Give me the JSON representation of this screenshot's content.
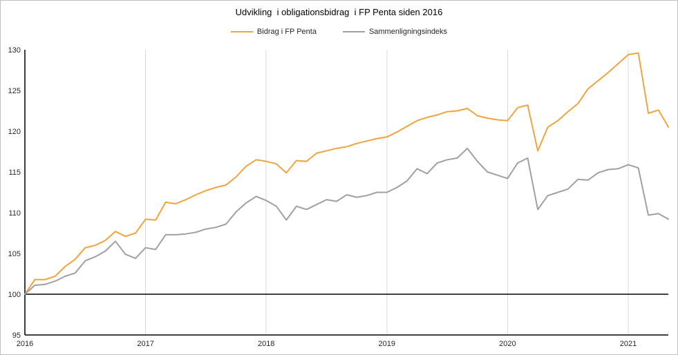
{
  "title": "Udvikling  i obligationsbidrag  i FP Penta siden 2016",
  "legend": [
    {
      "label": "Bidrag i FP Penta",
      "color": "#F1A33C"
    },
    {
      "label": "Sammenligningsindeks",
      "color": "#A0A0A0"
    }
  ],
  "colors": {
    "series_orange": "#F1A33C",
    "series_gray": "#A0A0A0",
    "gridline": "#D9D9D9",
    "axis": "#262626",
    "baseline": "#000000",
    "background": "#FFFFFF"
  },
  "chart_data": {
    "type": "line",
    "x_unit": "month",
    "x_start_label": "2016",
    "x_tick_labels": [
      "2016",
      "2017",
      "2018",
      "2019",
      "2020",
      "2021"
    ],
    "months_per_tick": 12,
    "y_ticks": [
      95,
      100,
      105,
      110,
      115,
      120,
      125,
      130
    ],
    "ylim": [
      95,
      130
    ],
    "baseline_value": 100,
    "grid": "vertical-only",
    "legend_position": "top-center",
    "series": [
      {
        "name": "Bidrag i FP Penta",
        "color": "#F1A33C",
        "values": [
          100.0,
          101.8,
          101.8,
          102.2,
          103.4,
          104.3,
          105.7,
          106.0,
          106.6,
          107.7,
          107.1,
          107.5,
          109.2,
          109.1,
          111.3,
          111.1,
          111.6,
          112.2,
          112.7,
          113.1,
          113.4,
          114.4,
          115.7,
          116.5,
          116.3,
          116.0,
          114.9,
          116.4,
          116.3,
          117.3,
          117.6,
          117.9,
          118.1,
          118.5,
          118.8,
          119.1,
          119.3,
          119.9,
          120.6,
          121.3,
          121.7,
          122.0,
          122.4,
          122.5,
          122.8,
          121.9,
          121.6,
          121.4,
          121.3,
          122.9,
          123.2,
          117.6,
          120.5,
          121.3,
          122.4,
          123.4,
          125.2,
          126.2,
          127.2,
          128.3,
          129.4,
          129.6,
          122.2,
          122.6,
          120.5
        ]
      },
      {
        "name": "Sammenligningsindeks",
        "color": "#A0A0A0",
        "values": [
          100.0,
          101.1,
          101.2,
          101.6,
          102.2,
          102.6,
          104.1,
          104.6,
          105.3,
          106.5,
          104.9,
          104.4,
          105.7,
          105.5,
          107.3,
          107.3,
          107.4,
          107.6,
          108.0,
          108.2,
          108.6,
          110.1,
          111.2,
          112.0,
          111.5,
          110.8,
          109.1,
          110.8,
          110.4,
          111.0,
          111.6,
          111.4,
          112.2,
          111.9,
          112.1,
          112.5,
          112.5,
          113.1,
          113.9,
          115.4,
          114.8,
          116.1,
          116.5,
          116.7,
          117.9,
          116.3,
          115.0,
          114.6,
          114.2,
          116.1,
          116.7,
          110.4,
          112.1,
          112.5,
          112.9,
          114.1,
          114.0,
          114.9,
          115.3,
          115.4,
          115.9,
          115.5,
          109.7,
          109.9,
          109.2
        ]
      }
    ]
  }
}
